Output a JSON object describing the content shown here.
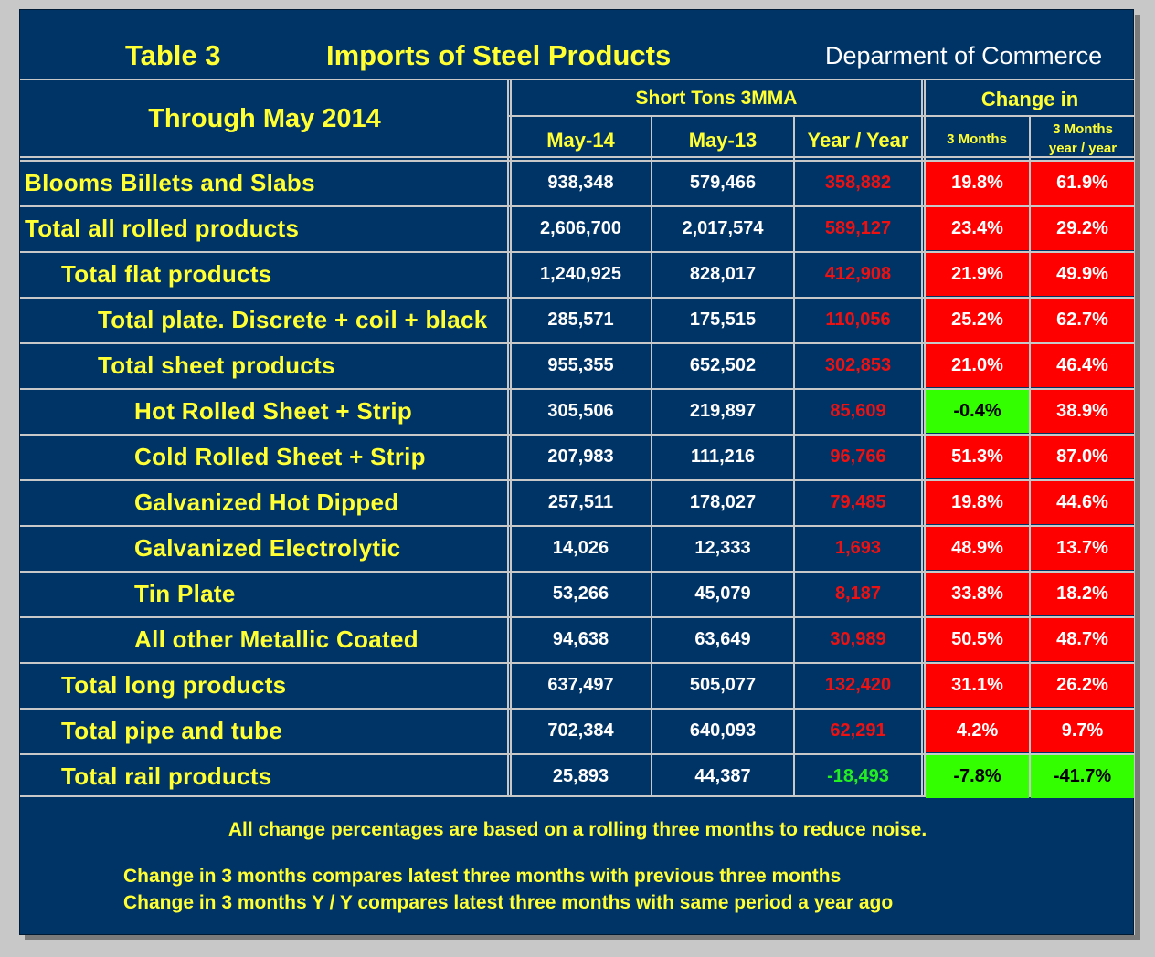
{
  "header": {
    "table_label": "Table 3",
    "title": "Imports of Steel Products",
    "source": "Deparment of Commerce"
  },
  "columns": {
    "period": "Through May 2014",
    "group_tons": "Short Tons 3MMA",
    "group_change": "Change in",
    "may14": "May-14",
    "may13": "May-13",
    "yoy": "Year / Year",
    "three_months": "3 Months",
    "three_months_yy_line1": "3 Months",
    "three_months_yy_line2": "year / year"
  },
  "rows": [
    {
      "label": "Blooms Billets and Slabs",
      "may14": "938,348",
      "may13": "579,466",
      "yoy": "358,882",
      "yoy_status": "increase",
      "chg3m": "19.8%",
      "chg3m_status": "increase",
      "chg3m_yy": "61.9%",
      "chg3m_yy_status": "increase"
    },
    {
      "label": "Total all rolled products",
      "may14": "2,606,700",
      "may13": "2,017,574",
      "yoy": "589,127",
      "yoy_status": "increase",
      "chg3m": "23.4%",
      "chg3m_status": "increase",
      "chg3m_yy": "29.2%",
      "chg3m_yy_status": "increase"
    },
    {
      "label": "Total flat products",
      "may14": "1,240,925",
      "may13": "828,017",
      "yoy": "412,908",
      "yoy_status": "increase",
      "chg3m": "21.9%",
      "chg3m_status": "increase",
      "chg3m_yy": "49.9%",
      "chg3m_yy_status": "increase"
    },
    {
      "label": "Total plate. Discrete + coil + black",
      "may14": "285,571",
      "may13": "175,515",
      "yoy": "110,056",
      "yoy_status": "increase",
      "chg3m": "25.2%",
      "chg3m_status": "increase",
      "chg3m_yy": "62.7%",
      "chg3m_yy_status": "increase"
    },
    {
      "label": "Total sheet products",
      "may14": "955,355",
      "may13": "652,502",
      "yoy": "302,853",
      "yoy_status": "increase",
      "chg3m": "21.0%",
      "chg3m_status": "increase",
      "chg3m_yy": "46.4%",
      "chg3m_yy_status": "increase"
    },
    {
      "label": "Hot Rolled Sheet + Strip",
      "may14": "305,506",
      "may13": "219,897",
      "yoy": "85,609",
      "yoy_status": "increase",
      "chg3m": "-0.4%",
      "chg3m_status": "decrease",
      "chg3m_yy": "38.9%",
      "chg3m_yy_status": "increase"
    },
    {
      "label": "Cold Rolled Sheet + Strip",
      "may14": "207,983",
      "may13": "111,216",
      "yoy": "96,766",
      "yoy_status": "increase",
      "chg3m": "51.3%",
      "chg3m_status": "increase",
      "chg3m_yy": "87.0%",
      "chg3m_yy_status": "increase"
    },
    {
      "label": "Galvanized Hot Dipped",
      "may14": "257,511",
      "may13": "178,027",
      "yoy": "79,485",
      "yoy_status": "increase",
      "chg3m": "19.8%",
      "chg3m_status": "increase",
      "chg3m_yy": "44.6%",
      "chg3m_yy_status": "increase"
    },
    {
      "label": "Galvanized Electrolytic",
      "may14": "14,026",
      "may13": "12,333",
      "yoy": "1,693",
      "yoy_status": "increase",
      "chg3m": "48.9%",
      "chg3m_status": "increase",
      "chg3m_yy": "13.7%",
      "chg3m_yy_status": "increase"
    },
    {
      "label": "Tin Plate",
      "may14": "53,266",
      "may13": "45,079",
      "yoy": "8,187",
      "yoy_status": "increase",
      "chg3m": "33.8%",
      "chg3m_status": "increase",
      "chg3m_yy": "18.2%",
      "chg3m_yy_status": "increase"
    },
    {
      "label": "All other Metallic Coated",
      "may14": "94,638",
      "may13": "63,649",
      "yoy": "30,989",
      "yoy_status": "increase",
      "chg3m": "50.5%",
      "chg3m_status": "increase",
      "chg3m_yy": "48.7%",
      "chg3m_yy_status": "increase"
    },
    {
      "label": "Total long products",
      "may14": "637,497",
      "may13": "505,077",
      "yoy": "132,420",
      "yoy_status": "increase",
      "chg3m": "31.1%",
      "chg3m_status": "increase",
      "chg3m_yy": "26.2%",
      "chg3m_yy_status": "increase"
    },
    {
      "label": "Total pipe and tube",
      "may14": "702,384",
      "may13": "640,093",
      "yoy": "62,291",
      "yoy_status": "increase",
      "chg3m": "4.2%",
      "chg3m_status": "increase",
      "chg3m_yy": "9.7%",
      "chg3m_yy_status": "increase"
    },
    {
      "label": "Total rail products",
      "may14": "25,893",
      "may13": "44,387",
      "yoy": "-18,493",
      "yoy_status": "decrease",
      "chg3m": "-7.8%",
      "chg3m_status": "decrease",
      "chg3m_yy": "-41.7%",
      "chg3m_yy_status": "decrease"
    }
  ],
  "notes": {
    "line1": "All change percentages are based on a rolling three months to reduce noise.",
    "line2": "Change in 3 months compares latest three months with previous three months",
    "line3": "Change in 3 months  Y / Y compares latest three months with same period a year ago"
  },
  "colors": {
    "panel": "#003366",
    "title_text": "#ffff33",
    "increase_bg": "#ff0000",
    "decrease_bg": "#33ff00",
    "yoy_increase_text": "#ee1111",
    "yoy_decrease_text": "#22ee22"
  }
}
